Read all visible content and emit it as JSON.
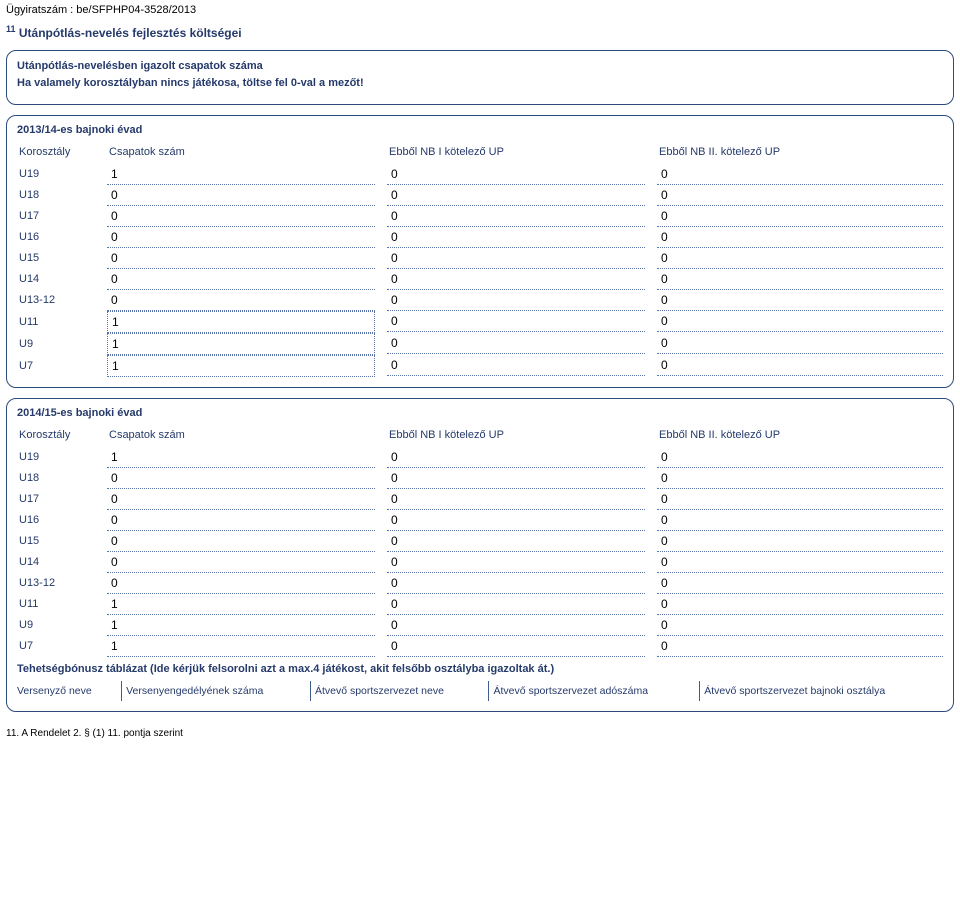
{
  "case_label": "Ügyiratszám : be/SFPHP04-3528/2013",
  "title_sup": "11",
  "title_text": "Utánpótlás-nevelés fejlesztés költségei",
  "intro_panel": {
    "line1": "Utánpótlás-nevelésben igazolt csapatok száma",
    "line2": "Ha valamely korosztályban nincs játékosa, töltse fel 0-val a mezőt!"
  },
  "headers": {
    "korosztaly": "Korosztály",
    "csapat": "Csapatok szám",
    "nb1": "Ebből NB I kötelező UP",
    "nb2": "Ebből NB II. kötelező UP"
  },
  "season1": {
    "title": "2013/14-es bajnoki évad",
    "rows": [
      {
        "label": "U19",
        "csapat": "1",
        "nb1": "0",
        "nb2": "0",
        "boxed": false
      },
      {
        "label": "U18",
        "csapat": "0",
        "nb1": "0",
        "nb2": "0",
        "boxed": false
      },
      {
        "label": "U17",
        "csapat": "0",
        "nb1": "0",
        "nb2": "0",
        "boxed": false
      },
      {
        "label": "U16",
        "csapat": "0",
        "nb1": "0",
        "nb2": "0",
        "boxed": false
      },
      {
        "label": "U15",
        "csapat": "0",
        "nb1": "0",
        "nb2": "0",
        "boxed": false
      },
      {
        "label": "U14",
        "csapat": "0",
        "nb1": "0",
        "nb2": "0",
        "boxed": false
      },
      {
        "label": "U13-12",
        "csapat": "0",
        "nb1": "0",
        "nb2": "0",
        "boxed": false
      },
      {
        "label": "U11",
        "csapat": "1",
        "nb1": "0",
        "nb2": "0",
        "boxed": true
      },
      {
        "label": "U9",
        "csapat": "1",
        "nb1": "0",
        "nb2": "0",
        "boxed": true
      },
      {
        "label": "U7",
        "csapat": "1",
        "nb1": "0",
        "nb2": "0",
        "boxed": true
      }
    ]
  },
  "season2": {
    "title": "2014/15-es bajnoki évad",
    "rows": [
      {
        "label": "U19",
        "csapat": "1",
        "nb1": "0",
        "nb2": "0"
      },
      {
        "label": "U18",
        "csapat": "0",
        "nb1": "0",
        "nb2": "0"
      },
      {
        "label": "U17",
        "csapat": "0",
        "nb1": "0",
        "nb2": "0"
      },
      {
        "label": "U16",
        "csapat": "0",
        "nb1": "0",
        "nb2": "0"
      },
      {
        "label": "U15",
        "csapat": "0",
        "nb1": "0",
        "nb2": "0"
      },
      {
        "label": "U14",
        "csapat": "0",
        "nb1": "0",
        "nb2": "0"
      },
      {
        "label": "U13-12",
        "csapat": "0",
        "nb1": "0",
        "nb2": "0"
      },
      {
        "label": "U11",
        "csapat": "1",
        "nb1": "0",
        "nb2": "0"
      },
      {
        "label": "U9",
        "csapat": "1",
        "nb1": "0",
        "nb2": "0"
      },
      {
        "label": "U7",
        "csapat": "1",
        "nb1": "0",
        "nb2": "0"
      }
    ]
  },
  "talent": {
    "title": "Tehetségbónusz táblázat (Ide kérjük felsorolni azt a max.4 játékost, akit felsőbb osztályba igazoltak át.)",
    "columns": [
      "Versenyző neve",
      "Versenyengedélyének száma",
      "Átvevő sportszervezet neve",
      "Átvevő sportszervezet adószáma",
      "Átvevő sportszervezet bajnoki osztálya"
    ]
  },
  "footnote": "11. A Rendelet 2. § (1) 11. pontja szerint",
  "style": {
    "accent_color": "#253a6a",
    "border_color": "#2d4c7c",
    "dotted_color": "#5b74a7",
    "background": "#ffffff",
    "body_font_size": 11
  }
}
